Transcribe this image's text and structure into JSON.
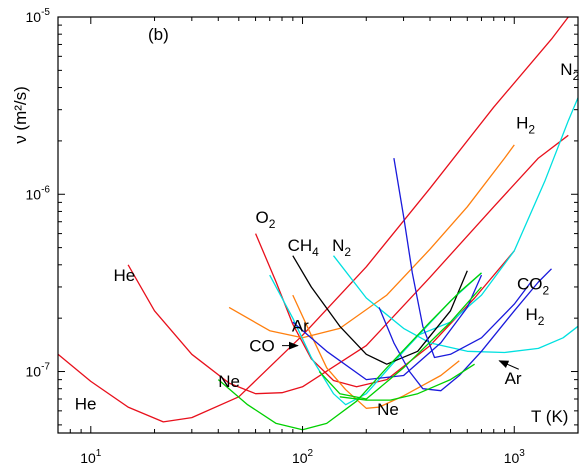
{
  "chart_data": {
    "type": "line",
    "panel_label": "(b)",
    "xlabel": "T (K)",
    "ylabel": "ν (m²/s)",
    "xscale": "log",
    "yscale": "log",
    "xlim": [
      7,
      2000
    ],
    "ylim": [
      4.5e-08,
      1e-05
    ],
    "grid": false,
    "x_ticks": [
      {
        "base": "10",
        "exp": "1",
        "value": 10
      },
      {
        "base": "10",
        "exp": "2",
        "value": 100
      },
      {
        "base": "10",
        "exp": "3",
        "value": 1000
      }
    ],
    "y_ticks": [
      {
        "base": "10",
        "exp": "-7",
        "value": 1e-07
      },
      {
        "base": "10",
        "exp": "-6",
        "value": 1e-06
      },
      {
        "base": "10",
        "exp": "-5",
        "value": 1e-05
      }
    ],
    "series": [
      {
        "color": "#e8101c",
        "points": [
          [
            7,
            1.25e-07
          ],
          [
            10,
            8.8e-08
          ],
          [
            15,
            6.3e-08
          ],
          [
            22,
            5.2e-08
          ],
          [
            30,
            5.5e-08
          ],
          [
            50,
            7.2e-08
          ],
          [
            100,
            1.6e-07
          ],
          [
            200,
            3.9e-07
          ],
          [
            400,
            1.08e-06
          ],
          [
            800,
            3.1e-06
          ],
          [
            1500,
            7.5e-06
          ],
          [
            1800,
            1e-05
          ]
        ]
      },
      {
        "color": "#e8101c",
        "points": [
          [
            15,
            4e-07
          ],
          [
            20,
            2.2e-07
          ],
          [
            30,
            1.25e-07
          ],
          [
            45,
            8.6e-08
          ],
          [
            60,
            7.5e-08
          ],
          [
            80,
            7.6e-08
          ],
          [
            100,
            8.2e-08
          ],
          [
            200,
            1.4e-07
          ],
          [
            400,
            3.4e-07
          ],
          [
            800,
            8.5e-07
          ],
          [
            1300,
            1.6e-06
          ],
          [
            1800,
            2.15e-06
          ]
        ]
      },
      {
        "color": "#e8101c",
        "points": [
          [
            60,
            6e-07
          ],
          [
            75,
            3.2e-07
          ],
          [
            90,
            1.85e-07
          ],
          [
            110,
            1.18e-07
          ],
          [
            140,
            8.9e-08
          ],
          [
            180,
            8.2e-08
          ],
          [
            250,
            9e-08
          ],
          [
            400,
            1.4e-07
          ],
          [
            650,
            2.6e-07
          ],
          [
            1000,
            4.8e-07
          ]
        ]
      },
      {
        "color": "#ff7f0e",
        "points": [
          [
            45,
            2.3e-07
          ],
          [
            70,
            1.7e-07
          ],
          [
            100,
            1.55e-07
          ],
          [
            150,
            1.75e-07
          ],
          [
            250,
            2.7e-07
          ],
          [
            400,
            4.9e-07
          ],
          [
            600,
            8.5e-07
          ],
          [
            900,
            1.6e-06
          ],
          [
            1000,
            1.9e-06
          ]
        ]
      },
      {
        "color": "#ff7f0e",
        "points": [
          [
            90,
            2.7e-07
          ],
          [
            110,
            1.6e-07
          ],
          [
            130,
            1.05e-07
          ],
          [
            160,
            7.9e-08
          ],
          [
            200,
            6.2e-08
          ],
          [
            230,
            6.3e-08
          ],
          [
            300,
            7.3e-08
          ],
          [
            450,
            9.5e-08
          ],
          [
            550,
            1.15e-07
          ]
        ]
      },
      {
        "color": "#00e0e0",
        "points": [
          [
            70,
            3.5e-07
          ],
          [
            90,
            2e-07
          ],
          [
            110,
            1.2e-07
          ],
          [
            140,
            7.5e-08
          ],
          [
            160,
            6.5e-08
          ],
          [
            200,
            7.5e-08
          ],
          [
            300,
            1.3e-07
          ],
          [
            500,
            2.5e-07
          ],
          [
            700,
            3.6e-07
          ]
        ]
      },
      {
        "color": "#00e0e0",
        "points": [
          [
            140,
            4.5e-07
          ],
          [
            200,
            2.6e-07
          ],
          [
            300,
            1.75e-07
          ],
          [
            400,
            1.45e-07
          ],
          [
            600,
            1.3e-07
          ],
          [
            900,
            1.28e-07
          ],
          [
            1300,
            1.35e-07
          ],
          [
            1700,
            1.55e-07
          ],
          [
            2000,
            1.8e-07
          ]
        ]
      },
      {
        "color": "#00e0e0",
        "points": [
          [
            350,
            1.6e-07
          ],
          [
            500,
            1.9e-07
          ],
          [
            700,
            2.7e-07
          ],
          [
            1000,
            4.8e-07
          ],
          [
            1400,
            1.2e-06
          ],
          [
            1800,
            2.6e-06
          ],
          [
            2000,
            3.5e-06
          ]
        ]
      },
      {
        "color": "#000000",
        "points": [
          [
            90,
            4.5e-07
          ],
          [
            110,
            3e-07
          ],
          [
            150,
            1.8e-07
          ],
          [
            200,
            1.25e-07
          ],
          [
            250,
            1.1e-07
          ],
          [
            350,
            1.3e-07
          ],
          [
            500,
            2.2e-07
          ],
          [
            600,
            3.7e-07
          ]
        ]
      },
      {
        "color": "#1a1adc",
        "points": [
          [
            90,
            1.9e-07
          ],
          [
            130,
            1.3e-07
          ],
          [
            200,
            9e-08
          ],
          [
            300,
            9.5e-08
          ],
          [
            450,
            1.45e-07
          ],
          [
            600,
            2.3e-07
          ],
          [
            700,
            3.5e-07
          ]
        ]
      },
      {
        "color": "#1a1adc",
        "points": [
          [
            270,
            1.6e-06
          ],
          [
            300,
            7.5e-07
          ],
          [
            330,
            3.6e-07
          ],
          [
            370,
            1.8e-07
          ],
          [
            420,
            1.2e-07
          ],
          [
            500,
            1.25e-07
          ],
          [
            700,
            1.55e-07
          ],
          [
            1000,
            2.4e-07
          ],
          [
            1200,
            3.2e-07
          ]
        ]
      },
      {
        "color": "#1a1adc",
        "points": [
          [
            230,
            2.3e-07
          ],
          [
            270,
            1.45e-07
          ],
          [
            320,
            1e-07
          ],
          [
            370,
            8e-08
          ],
          [
            450,
            7.8e-08
          ],
          [
            550,
            9.5e-08
          ],
          [
            700,
            1.3e-07
          ],
          [
            1000,
            2.2e-07
          ],
          [
            1300,
            3.2e-07
          ],
          [
            1500,
            3.8e-07
          ]
        ]
      },
      {
        "color": "#00d000",
        "points": [
          [
            40,
            9e-08
          ],
          [
            55,
            6.5e-08
          ],
          [
            75,
            5.1e-08
          ],
          [
            100,
            4.7e-08
          ],
          [
            130,
            5.1e-08
          ],
          [
            180,
            6.8e-08
          ],
          [
            250,
            1.05e-07
          ],
          [
            400,
            1.9e-07
          ],
          [
            550,
            2.8e-07
          ],
          [
            700,
            3.6e-07
          ]
        ]
      },
      {
        "color": "#00d000",
        "points": [
          [
            120,
            1e-07
          ],
          [
            150,
            7.5e-08
          ],
          [
            200,
            7e-08
          ],
          [
            300,
            1.05e-07
          ],
          [
            500,
            1.9e-07
          ],
          [
            700,
            3e-07
          ]
        ]
      },
      {
        "color": "#00d000",
        "points": [
          [
            150,
            7.2e-08
          ],
          [
            200,
            6.9e-08
          ],
          [
            260,
            6.9e-08
          ],
          [
            350,
            7.5e-08
          ],
          [
            500,
            9e-08
          ],
          [
            650,
            1.1e-07
          ]
        ]
      }
    ],
    "labels": [
      {
        "text": "He",
        "sub": "",
        "x": 12.8,
        "y": 3.25e-07
      },
      {
        "text": "He",
        "sub": "",
        "x": 8.4,
        "y": 6.1e-08
      },
      {
        "text": "O",
        "sub": "2",
        "x": 60,
        "y": 6.9e-07
      },
      {
        "text": "CH",
        "sub": "4",
        "x": 85,
        "y": 4.8e-07
      },
      {
        "text": "N",
        "sub": "2",
        "x": 138,
        "y": 4.8e-07
      },
      {
        "text": "N",
        "sub": "2",
        "x": 1650,
        "y": 4.7e-06
      },
      {
        "text": "H",
        "sub": "2",
        "x": 1020,
        "y": 2.35e-06
      },
      {
        "text": "Ar",
        "sub": "",
        "x": 89,
        "y": 1.68e-07
      },
      {
        "text": "CO",
        "sub": "",
        "x": 56,
        "y": 1.3e-07
      },
      {
        "text": "Ne",
        "sub": "",
        "x": 40,
        "y": 8.2e-08
      },
      {
        "text": "Ne",
        "sub": "",
        "x": 225,
        "y": 5.7e-08
      },
      {
        "text": "CO",
        "sub": "2",
        "x": 1030,
        "y": 2.9e-07
      },
      {
        "text": "H",
        "sub": "2",
        "x": 1130,
        "y": 1.95e-07
      },
      {
        "text": "Ar",
        "sub": "",
        "x": 900,
        "y": 8.5e-08
      }
    ],
    "arrows": [
      {
        "from": [
          80,
          1.4e-07
        ],
        "to": [
          95,
          1.4e-07
        ]
      },
      {
        "from": [
          1050,
          1.03e-07
        ],
        "to": [
          850,
          1.15e-07
        ]
      }
    ]
  }
}
